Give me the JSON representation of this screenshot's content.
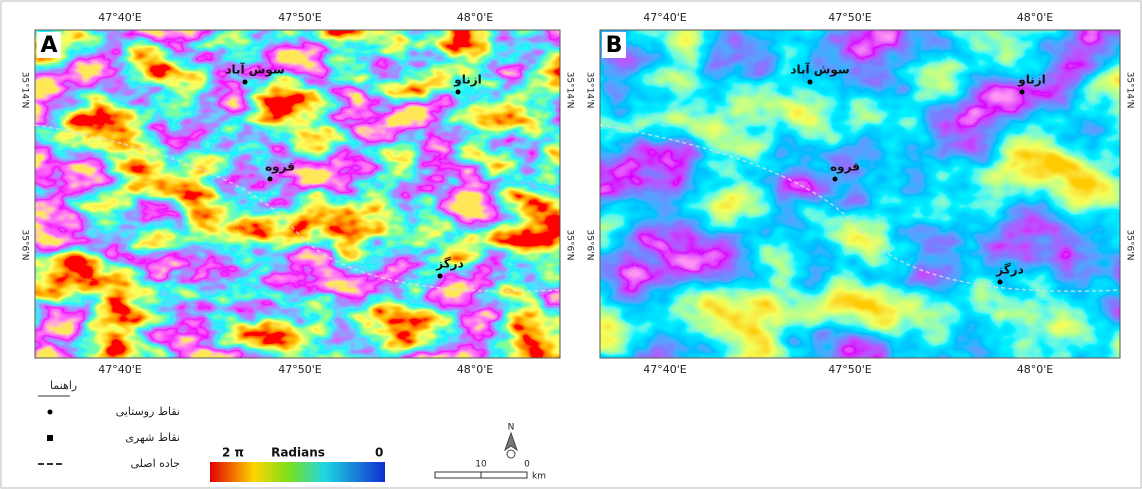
{
  "panels": [
    {
      "label": "A",
      "lon_top": [
        "47°40'E",
        "47°50'E",
        "48°0'E"
      ],
      "lon_bottom": [
        "47°40'E",
        "47°50'E",
        "48°0'E"
      ],
      "lat_left": [
        "35°14'N",
        "35°6'N"
      ],
      "lat_right": [
        "35°14'N",
        "35°6'N"
      ],
      "places": [
        "سوش آباد",
        "ازناو",
        "قروه",
        "درگز"
      ]
    },
    {
      "label": "B",
      "lon_top": [
        "47°40'E",
        "47°50'E",
        "48°0'E"
      ],
      "lon_bottom": [
        "47°40'E",
        "47°50'E",
        "48°0'E"
      ],
      "lat_left": [
        "35°14'N",
        "35°6'N"
      ],
      "lat_right": [
        "35°14'N",
        "35°6'N"
      ],
      "places": [
        "سوش آباد",
        "ازناو",
        "قروه",
        "درگز"
      ]
    }
  ],
  "legend": {
    "title": "راهنما",
    "items": [
      "نقاط روستایی",
      "نقاط شهری",
      "جاده اصلی"
    ]
  },
  "colorbar": {
    "max": "2 π",
    "title": "Radians",
    "min": "0"
  },
  "scale": {
    "distance": "10",
    "zero": "0",
    "unit": "km"
  },
  "north": "N"
}
